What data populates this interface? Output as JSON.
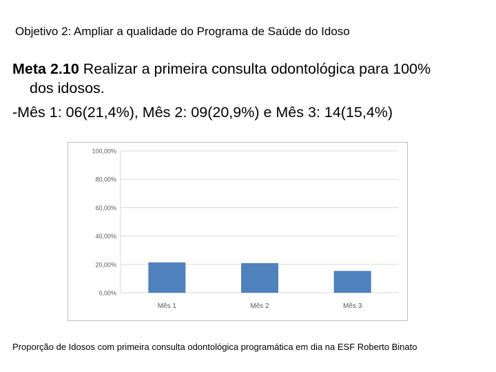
{
  "objective": "Objetivo 2: Ampliar a qualidade do Programa de Saúde do Idoso",
  "goal": {
    "label": "Meta 2.10",
    "text_line1": " Realizar a primeira consulta odontológica para 100%",
    "text_line2": "dos idosos."
  },
  "months_summary": "-Mês 1: 06(21,4%), Mês 2: 09(20,9%) e Mês 3: 14(15,4%)",
  "caption": "Proporção de Idosos com primeira consulta odontológica programática em dia na ESF Roberto Binato",
  "colors": {
    "bar": "#4f81bd",
    "grid": "#d9d9d9",
    "axis_text": "#595959"
  },
  "chart_data": {
    "type": "bar",
    "categories": [
      "Mês 1",
      "Mês 2",
      "Mês 3"
    ],
    "values": [
      21.4,
      20.9,
      15.4
    ],
    "ylim": [
      0,
      100
    ],
    "yticks": [
      "0,00%",
      "20,00%",
      "40,00%",
      "60,00%",
      "80,00%",
      "100,00%"
    ],
    "grid": true,
    "legend": "none",
    "title": "",
    "xlabel": "",
    "ylabel": ""
  }
}
